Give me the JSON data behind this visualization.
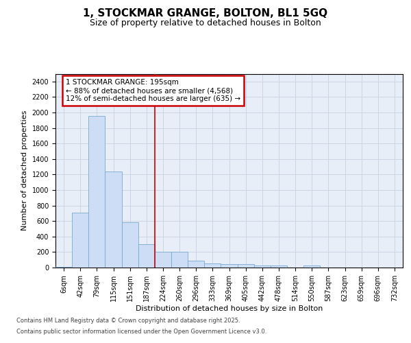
{
  "title_line1": "1, STOCKMAR GRANGE, BOLTON, BL1 5GQ",
  "title_line2": "Size of property relative to detached houses in Bolton",
  "xlabel": "Distribution of detached houses by size in Bolton",
  "ylabel": "Number of detached properties",
  "bar_color": "#ccddf5",
  "bar_edge_color": "#7aaad0",
  "grid_color": "#c8d0e0",
  "background_color": "#e8eef8",
  "vline_color": "#cc0000",
  "vline_x": 5.5,
  "annotation_text": "1 STOCKMAR GRANGE: 195sqm\n← 88% of detached houses are smaller (4,568)\n12% of semi-detached houses are larger (635) →",
  "annotation_box_color": "#cc0000",
  "footnote_line1": "Contains HM Land Registry data © Crown copyright and database right 2025.",
  "footnote_line2": "Contains public sector information licensed under the Open Government Licence v3.0.",
  "categories": [
    "6sqm",
    "42sqm",
    "79sqm",
    "115sqm",
    "151sqm",
    "187sqm",
    "224sqm",
    "260sqm",
    "296sqm",
    "333sqm",
    "369sqm",
    "405sqm",
    "442sqm",
    "478sqm",
    "514sqm",
    "550sqm",
    "587sqm",
    "623sqm",
    "659sqm",
    "696sqm",
    "732sqm"
  ],
  "values": [
    10,
    710,
    1960,
    1240,
    580,
    305,
    200,
    205,
    85,
    50,
    42,
    40,
    30,
    30,
    0,
    25,
    0,
    0,
    0,
    0,
    0
  ],
  "ylim": [
    0,
    2500
  ],
  "yticks": [
    0,
    200,
    400,
    600,
    800,
    1000,
    1200,
    1400,
    1600,
    1800,
    2000,
    2200,
    2400
  ],
  "title_fontsize": 11,
  "subtitle_fontsize": 9,
  "tick_fontsize": 7,
  "label_fontsize": 8,
  "annot_fontsize": 7.5,
  "footnote_fontsize": 6
}
